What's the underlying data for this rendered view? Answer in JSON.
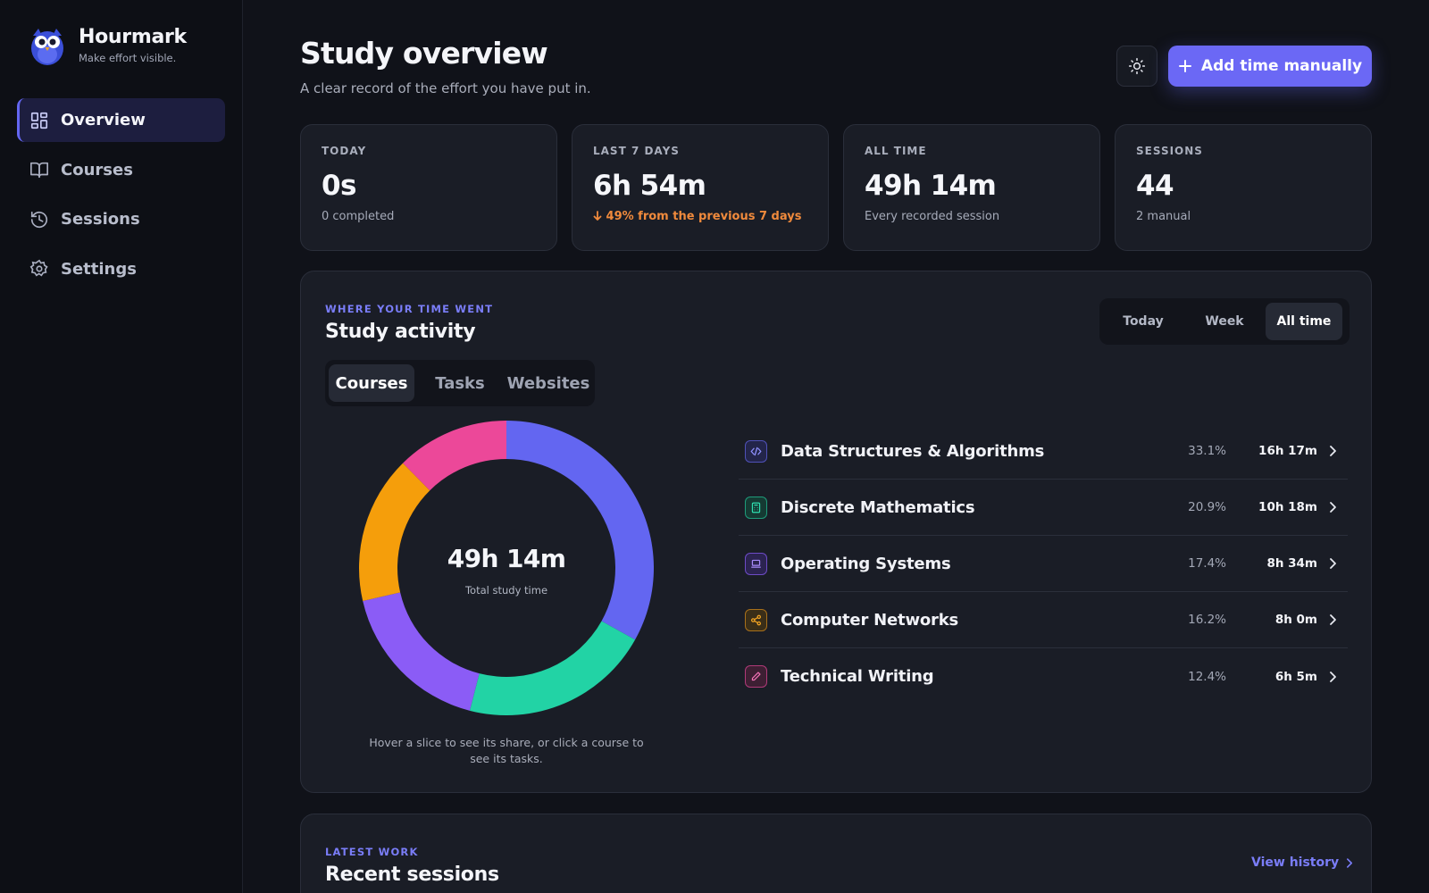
{
  "brand": {
    "name": "Hourmark",
    "tagline": "Make effort visible."
  },
  "nav": {
    "items": [
      {
        "label": "Overview",
        "icon": "grid-icon",
        "active": true
      },
      {
        "label": "Courses",
        "icon": "book-icon",
        "active": false
      },
      {
        "label": "Sessions",
        "icon": "history-icon",
        "active": false
      },
      {
        "label": "Settings",
        "icon": "gear-icon",
        "active": false
      }
    ]
  },
  "header": {
    "title": "Study overview",
    "subtitle": "A clear record of the effort you have put in.",
    "add_button": "Add time manually"
  },
  "stats": [
    {
      "label": "TODAY",
      "value": "0s",
      "note": "0 completed"
    },
    {
      "label": "LAST 7 DAYS",
      "value": "6h 54m",
      "note": "49% from the previous 7 days",
      "trend": "down"
    },
    {
      "label": "ALL TIME",
      "value": "49h 14m",
      "note": "Every recorded session"
    },
    {
      "label": "SESSIONS",
      "value": "44",
      "note": "2 manual"
    }
  ],
  "activity": {
    "eyebrow": "WHERE YOUR TIME WENT",
    "title": "Study activity",
    "ranges": [
      "Today",
      "Week",
      "All time"
    ],
    "selected_range": "All time",
    "tabs": [
      "Courses",
      "Tasks",
      "Websites"
    ],
    "selected_tab": "Courses",
    "total": "49h 14m",
    "total_caption": "Total study time",
    "hint": "Hover a slice to see its share, or click a course to see its tasks."
  },
  "chart_data": {
    "type": "pie",
    "categories": [
      "Data Structures & Algorithms",
      "Discrete Mathematics",
      "Operating Systems",
      "Computer Networks",
      "Technical Writing"
    ],
    "values": [
      33.1,
      20.9,
      17.4,
      16.2,
      12.4
    ],
    "durations": [
      "16h 17m",
      "10h 18m",
      "8h 34m",
      "8h 0m",
      "6h 5m"
    ],
    "colors": [
      "#6366f1",
      "#22d3a5",
      "#8b5cf6",
      "#f59e0b",
      "#ec4899"
    ],
    "icons": [
      "code-icon",
      "calculator-icon",
      "laptop-icon",
      "share-icon",
      "pen-icon"
    ]
  },
  "recent": {
    "eyebrow": "LATEST WORK",
    "title": "Recent sessions",
    "view_history": "View history"
  }
}
